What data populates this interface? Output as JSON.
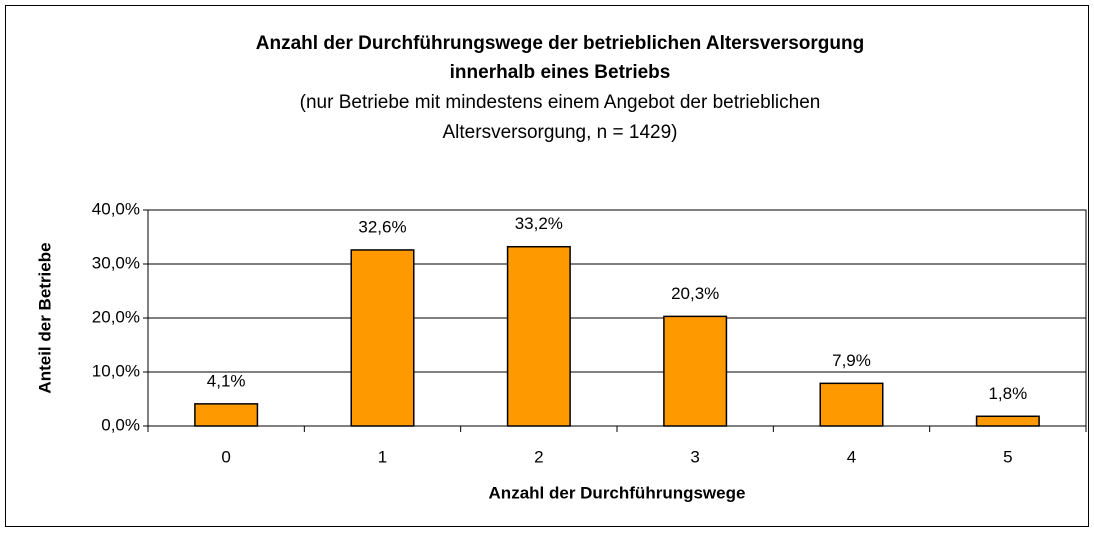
{
  "chart_data": {
    "type": "bar",
    "title": [
      "Anzahl der Durchführungswege der betrieblichen Altersversorgung",
      "innerhalb eines Betriebs"
    ],
    "subtitle": [
      "(nur Betriebe mit mindestens einem Angebot der betrieblichen",
      "Altersversorgung, n = 1429)"
    ],
    "x_label": "Anzahl der Durchführungswege",
    "y_label": "Anteil der Betriebe",
    "categories": [
      "0",
      "1",
      "2",
      "3",
      "4",
      "5"
    ],
    "values": [
      4.1,
      32.6,
      33.2,
      20.3,
      7.9,
      1.8
    ],
    "value_labels": [
      "4,1%",
      "32,6%",
      "33,2%",
      "20,3%",
      "7,9%",
      "1,8%"
    ],
    "color": "#ff9900",
    "ylim": [
      0,
      40
    ],
    "yticks": [
      {
        "value": 0,
        "label": "0,0%"
      },
      {
        "value": 10,
        "label": "10,0%"
      },
      {
        "value": 20,
        "label": "20,0%"
      },
      {
        "value": 30,
        "label": "30,0%"
      },
      {
        "value": 40,
        "label": "40,0%"
      }
    ],
    "grid": true
  }
}
